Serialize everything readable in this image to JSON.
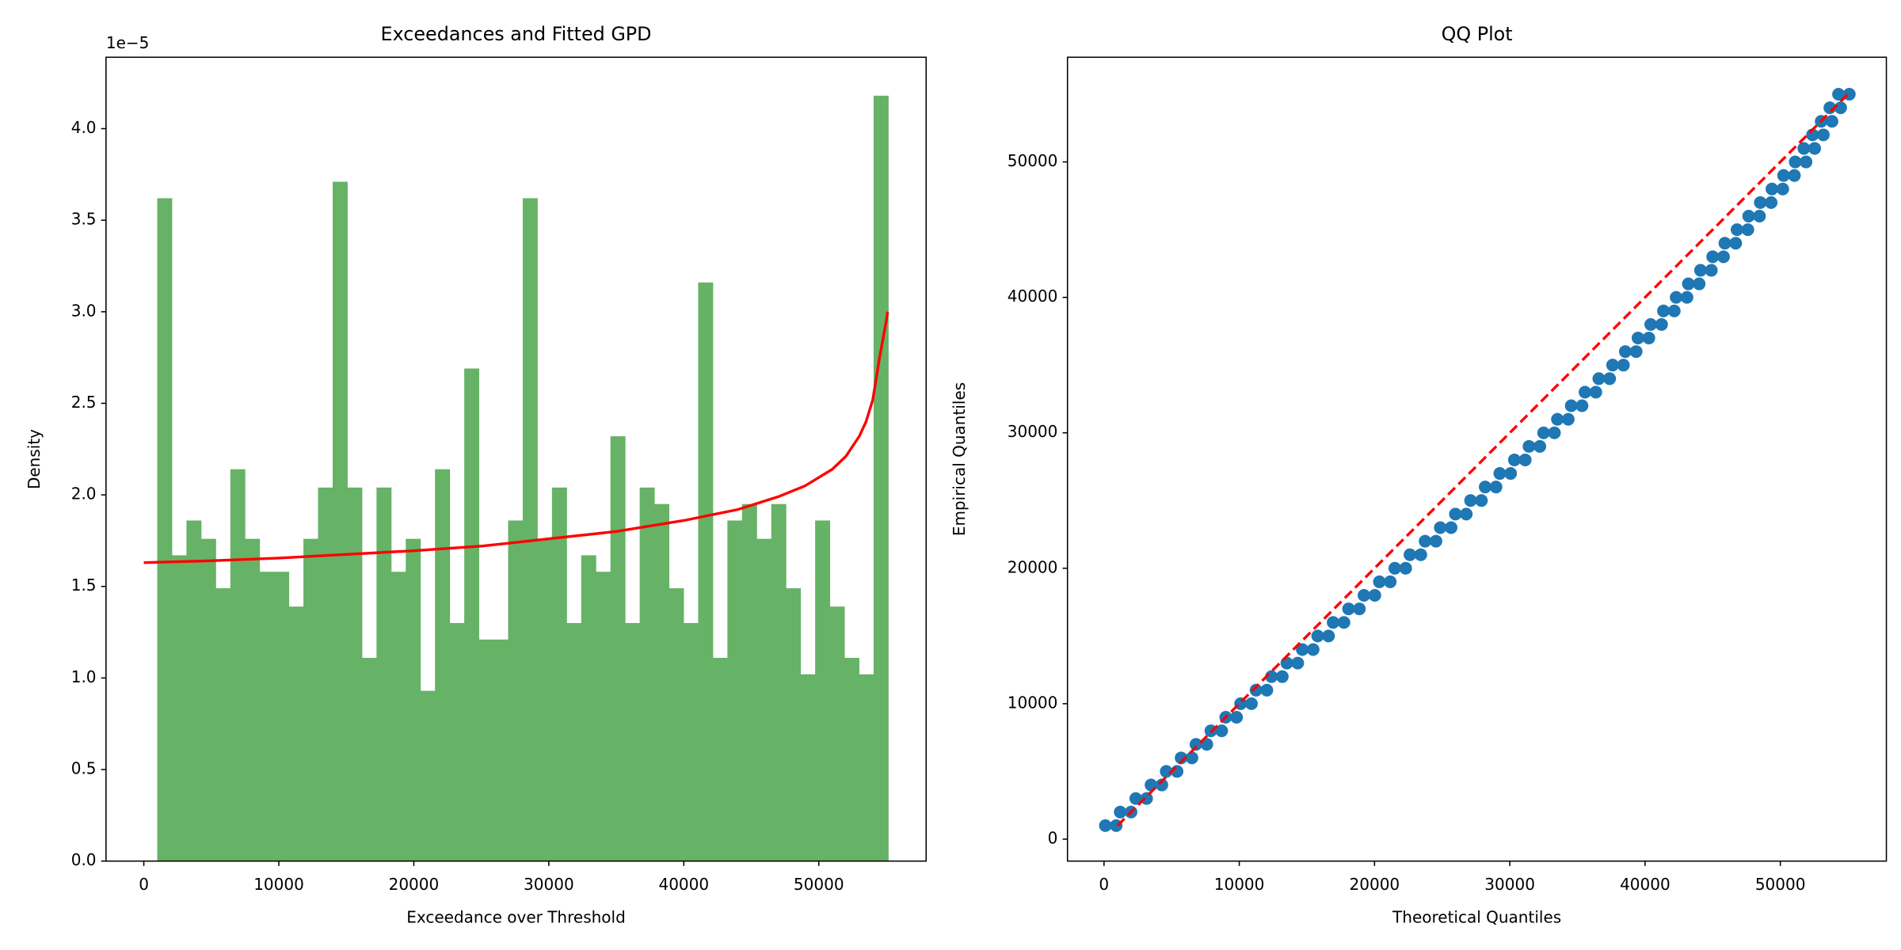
{
  "chart_data": [
    {
      "type": "histogram",
      "title": "Exceedances and Fitted GPD",
      "xlabel": "Exceedance over Threshold",
      "ylabel": "Density",
      "offset_text": "1e−5",
      "bins": [
        993,
        2076,
        3159,
        4242,
        5325,
        6408,
        7491,
        8574,
        9657,
        10740,
        11823,
        12906,
        13989,
        15072,
        16155,
        17238,
        18321,
        19404,
        20487,
        21570,
        22653,
        23736,
        24819,
        25902,
        26985,
        28068,
        29151,
        30234,
        31317,
        32400,
        33483,
        34566,
        35649,
        36732,
        37815,
        38898,
        39981,
        41064,
        42147,
        43230,
        44313,
        45396,
        46479,
        47562,
        48645,
        49728,
        50811,
        51894,
        52977,
        54060,
        55143
      ],
      "values": [
        3.62e-05,
        1.67e-05,
        1.86e-05,
        1.76e-05,
        1.49e-05,
        2.14e-05,
        1.76e-05,
        1.58e-05,
        1.58e-05,
        1.39e-05,
        1.76e-05,
        2.04e-05,
        3.71e-05,
        2.04e-05,
        1.11e-05,
        2.04e-05,
        1.58e-05,
        1.76e-05,
        9.3e-06,
        2.14e-05,
        1.3e-05,
        2.69e-05,
        1.21e-05,
        1.21e-05,
        1.86e-05,
        3.62e-05,
        1.76e-05,
        2.04e-05,
        1.3e-05,
        1.67e-05,
        1.58e-05,
        2.32e-05,
        1.3e-05,
        2.04e-05,
        1.95e-05,
        1.49e-05,
        1.3e-05,
        3.16e-05,
        1.11e-05,
        1.86e-05,
        1.95e-05,
        1.76e-05,
        1.95e-05,
        1.49e-05,
        1.02e-05,
        1.86e-05,
        1.39e-05,
        1.11e-05,
        1.02e-05,
        4.18e-05
      ],
      "color": "#66b266",
      "fit_x": [
        0,
        5000,
        10000,
        15000,
        20000,
        25000,
        30000,
        35000,
        40000,
        44000,
        47000,
        49000,
        51000,
        52000,
        53000,
        53500,
        54000,
        54500,
        55000,
        55100
      ],
      "fit_y": [
        1.63e-05,
        1.64e-05,
        1.655e-05,
        1.675e-05,
        1.695e-05,
        1.72e-05,
        1.76e-05,
        1.8e-05,
        1.86e-05,
        1.92e-05,
        1.99e-05,
        2.05e-05,
        2.14e-05,
        2.21e-05,
        2.32e-05,
        2.4e-05,
        2.52e-05,
        2.75e-05,
        2.95e-05,
        3e-05
      ],
      "fit_color": "#ff0000",
      "xlim": [
        -2800,
        57950
      ],
      "ylim": [
        0,
        4.39e-05
      ],
      "xticks": [
        0,
        10000,
        20000,
        30000,
        40000,
        50000
      ],
      "yticks": [
        {
          "value": 0,
          "label": "0.0"
        },
        {
          "value": 5e-06,
          "label": "0.5"
        },
        {
          "value": 1e-05,
          "label": "1.0"
        },
        {
          "value": 1.5e-05,
          "label": "1.5"
        },
        {
          "value": 2e-05,
          "label": "2.0"
        },
        {
          "value": 2.5e-05,
          "label": "2.5"
        },
        {
          "value": 3e-05,
          "label": "3.0"
        },
        {
          "value": 3.5e-05,
          "label": "3.5"
        },
        {
          "value": 4e-05,
          "label": "4.0"
        }
      ]
    },
    {
      "type": "scatter",
      "title": "QQ Plot",
      "xlabel": "Theoretical Quantiles",
      "ylabel": "Empirical Quantiles",
      "x": [
        100,
        900,
        1200,
        2000,
        2350,
        3150,
        3475,
        4275,
        4600,
        5400,
        5700,
        6500,
        6800,
        7600,
        7900,
        8700,
        9000,
        9800,
        10100,
        10900,
        11240,
        12040,
        12380,
        13180,
        13520,
        14320,
        14660,
        15460,
        15800,
        16600,
        16940,
        17740,
        18080,
        18880,
        19220,
        20020,
        20360,
        21160,
        21500,
        22300,
        22620,
        23420,
        23740,
        24540,
        24860,
        25660,
        25980,
        26780,
        27100,
        27900,
        28180,
        28980,
        29260,
        30060,
        30340,
        31140,
        31420,
        32220,
        32500,
        33300,
        33520,
        34320,
        34540,
        35340,
        35560,
        36360,
        36580,
        37380,
        37600,
        38400,
        38540,
        39340,
        39480,
        40280,
        40420,
        41220,
        41360,
        42160,
        42300,
        43100,
        43200,
        44000,
        44100,
        44900,
        45000,
        45800,
        45900,
        46700,
        46800,
        47600,
        47660,
        48460,
        48520,
        49320,
        49380,
        50180,
        50240,
        51040,
        51100,
        51900,
        51740,
        52540,
        52380,
        53180,
        53020,
        53820,
        53660,
        54460,
        54300,
        55100
      ],
      "y": [
        1000,
        1000,
        2000,
        2000,
        3000,
        3000,
        4000,
        4000,
        5000,
        5000,
        6000,
        6000,
        7000,
        7000,
        8000,
        8000,
        9000,
        9000,
        10000,
        10000,
        11000,
        11000,
        12000,
        12000,
        13000,
        13000,
        14000,
        14000,
        15000,
        15000,
        16000,
        16000,
        17000,
        17000,
        18000,
        18000,
        19000,
        19000,
        20000,
        20000,
        21000,
        21000,
        22000,
        22000,
        23000,
        23000,
        24000,
        24000,
        25000,
        25000,
        26000,
        26000,
        27000,
        27000,
        28000,
        28000,
        29000,
        29000,
        30000,
        30000,
        31000,
        31000,
        32000,
        32000,
        33000,
        33000,
        34000,
        34000,
        35000,
        35000,
        36000,
        36000,
        37000,
        37000,
        38000,
        38000,
        39000,
        39000,
        40000,
        40000,
        41000,
        41000,
        42000,
        42000,
        43000,
        43000,
        44000,
        44000,
        45000,
        45000,
        46000,
        46000,
        47000,
        47000,
        48000,
        48000,
        49000,
        49000,
        50000,
        50000,
        51000,
        51000,
        52000,
        52000,
        53000,
        53000,
        54000,
        54000,
        55000,
        55000
      ],
      "color": "#1f77b4",
      "ref_line": {
        "x": [
          1000,
          55000
        ],
        "y": [
          1000,
          55000
        ],
        "color": "#ff0000",
        "dashed": true
      },
      "xlim": [
        -2700,
        57840
      ],
      "ylim": [
        -1620,
        57730
      ],
      "xticks": [
        0,
        10000,
        20000,
        30000,
        40000,
        50000
      ],
      "yticks": [
        0,
        10000,
        20000,
        30000,
        40000,
        50000
      ]
    }
  ]
}
